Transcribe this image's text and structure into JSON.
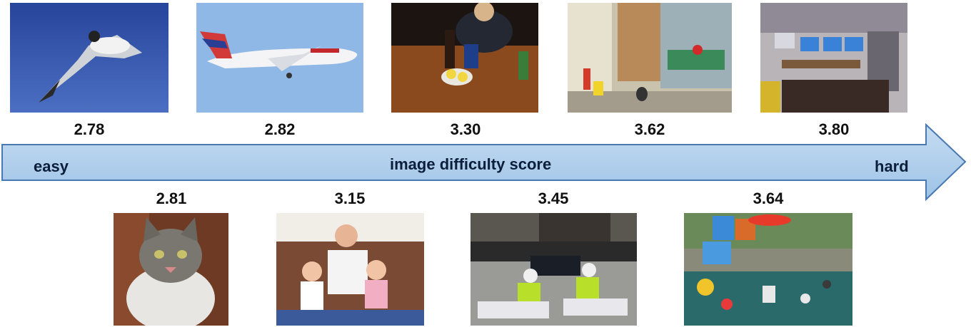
{
  "top_scores": [
    "2.78",
    "2.82",
    "3.30",
    "3.62",
    "3.80"
  ],
  "bottom_scores": [
    "2.81",
    "3.15",
    "3.45",
    "3.64"
  ],
  "arrow": {
    "left_label": "easy",
    "center_label": "image difficulty score",
    "right_label": "hard",
    "fill_color": "#9dc3e6",
    "stroke_color": "#4a78b0"
  },
  "image_subjects": {
    "top": [
      "seagull in flight",
      "airplane in sky",
      "dining table with bottles",
      "city street with motorbike",
      "room with computers"
    ],
    "bottom": [
      "cat portrait",
      "man with two babies on sofa",
      "police motorcycles on street",
      "flea market items"
    ]
  }
}
